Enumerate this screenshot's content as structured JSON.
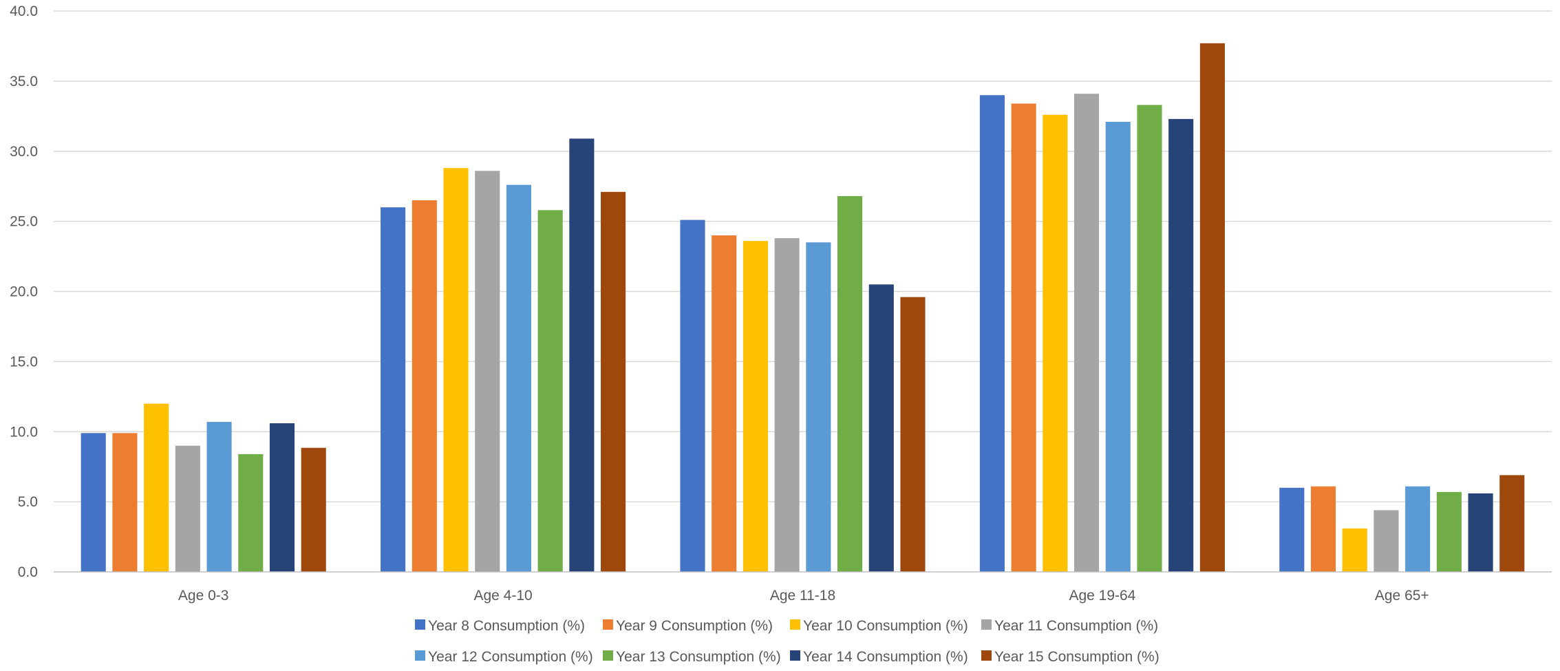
{
  "chart_data": {
    "type": "bar",
    "categories": [
      "Age 0-3",
      "Age 4-10",
      "Age 11-18",
      "Age 19-64",
      "Age 65+"
    ],
    "series": [
      {
        "name": "Year 8 Consumption (%)",
        "color": "#4472C4",
        "values": [
          9.9,
          26.0,
          25.1,
          34.0,
          6.0
        ]
      },
      {
        "name": "Year 9 Consumption (%)",
        "color": "#ED7D31",
        "values": [
          9.9,
          26.5,
          24.0,
          33.4,
          6.1
        ]
      },
      {
        "name": "Year 10 Consumption (%)",
        "color": "#FFC000",
        "values": [
          12.0,
          28.8,
          23.6,
          32.6,
          3.1
        ]
      },
      {
        "name": "Year 11 Consumption (%)",
        "color": "#A5A5A5",
        "values": [
          9.0,
          28.6,
          23.8,
          34.1,
          4.4
        ]
      },
      {
        "name": "Year 12 Consumption (%)",
        "color": "#5B9BD5",
        "values": [
          10.7,
          27.6,
          23.5,
          32.1,
          6.1
        ]
      },
      {
        "name": "Year 13 Consumption (%)",
        "color": "#70AD47",
        "values": [
          8.4,
          25.8,
          26.8,
          33.3,
          5.7
        ]
      },
      {
        "name": "Year 14 Consumption (%)",
        "color": "#264478",
        "values": [
          10.6,
          30.9,
          20.5,
          32.3,
          5.6
        ]
      },
      {
        "name": "Year 15 Consumption (%)",
        "color": "#9E480E",
        "values": [
          8.85,
          27.1,
          19.6,
          37.7,
          6.9
        ]
      }
    ],
    "yticks": [
      "0.0",
      "5.0",
      "10.0",
      "15.0",
      "20.0",
      "25.0",
      "30.0",
      "35.0",
      "40.0"
    ],
    "ylim": [
      0,
      40
    ],
    "grid": true,
    "legend_position": "bottom",
    "title": "",
    "xlabel": "",
    "ylabel": ""
  }
}
